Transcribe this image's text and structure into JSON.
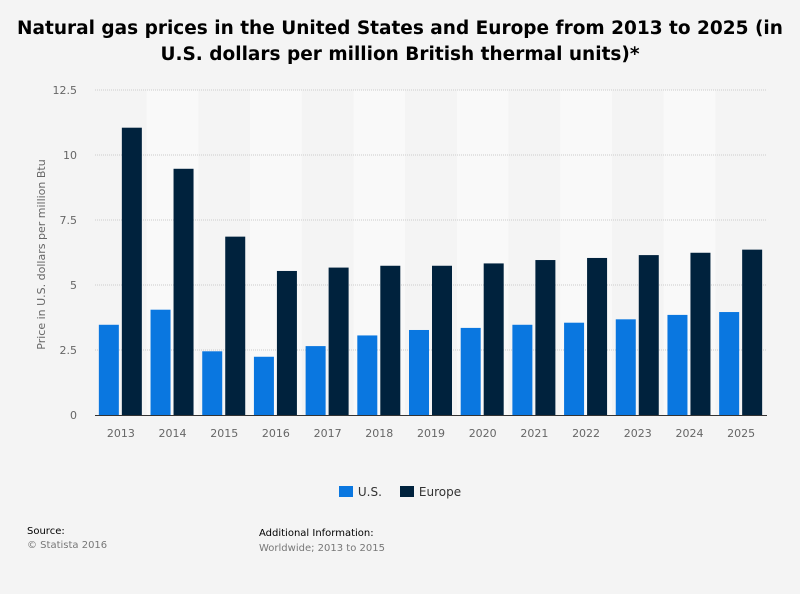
{
  "chart_data": {
    "type": "bar",
    "title": "Natural gas prices in the United States and Europe from 2013 to 2025 (in U.S. dollars per million British thermal units)*",
    "xlabel": "",
    "ylabel": "Price in U.S. dollars per million Btu",
    "ylim": [
      0,
      12.5
    ],
    "yticks": [
      "0",
      "2.5",
      "5",
      "7.5",
      "10",
      "12.5"
    ],
    "grid": true,
    "legend_position": "bottom",
    "categories": [
      "2013",
      "2014",
      "2015",
      "2016",
      "2017",
      "2018",
      "2019",
      "2020",
      "2021",
      "2022",
      "2023",
      "2024",
      "2025"
    ],
    "series": [
      {
        "name": "U.S.",
        "color": "#0a77e0",
        "values": [
          3.47,
          4.05,
          2.45,
          2.24,
          2.65,
          3.06,
          3.27,
          3.35,
          3.47,
          3.55,
          3.68,
          3.85,
          3.96
        ]
      },
      {
        "name": "Europe",
        "color": "#00223d",
        "values": [
          11.05,
          9.47,
          6.86,
          5.54,
          5.67,
          5.74,
          5.74,
          5.83,
          5.96,
          6.04,
          6.15,
          6.24,
          6.36
        ]
      }
    ]
  },
  "footer": {
    "source_label": "Source:",
    "source_value": "© Statista 2016",
    "info_label": "Additional Information:",
    "info_value": "Worldwide; 2013 to 2015"
  }
}
